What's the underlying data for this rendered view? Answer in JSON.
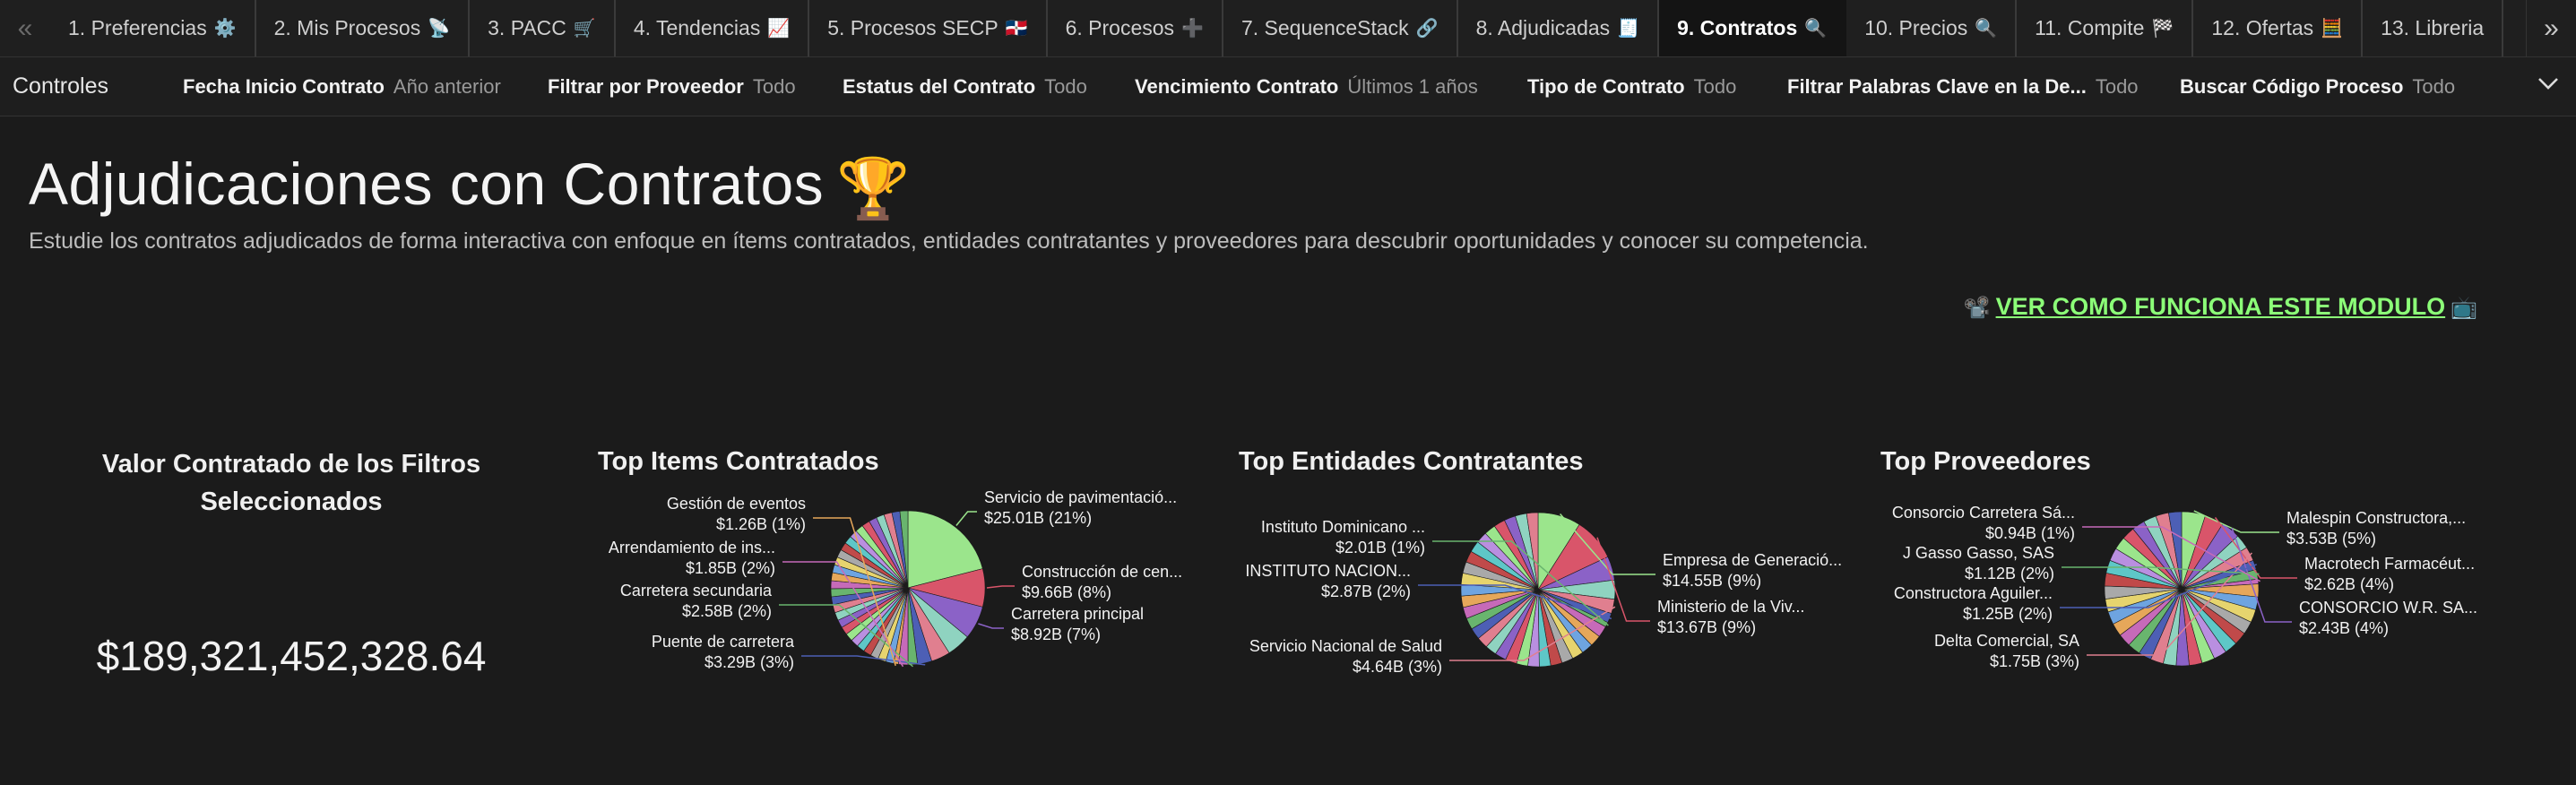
{
  "tabs": {
    "prev_label": "«",
    "next_label": "»",
    "items": [
      {
        "label": "1. Preferencias",
        "icon": "⚙️",
        "icon_name": "gear-icon",
        "active": false
      },
      {
        "label": "2. Mis Procesos",
        "icon": "📡",
        "icon_name": "satellite-icon",
        "active": false
      },
      {
        "label": "3. PACC",
        "icon": "🛒",
        "icon_name": "cart-icon",
        "active": false
      },
      {
        "label": "4. Tendencias",
        "icon": "📈",
        "icon_name": "trend-chart-icon",
        "active": false
      },
      {
        "label": "5. Procesos SECP",
        "icon": "🇩🇴",
        "icon_name": "dominican-flag-icon",
        "active": false
      },
      {
        "label": "6. Procesos",
        "icon": "➕",
        "icon_name": "plus-icon",
        "active": false
      },
      {
        "label": "7. SequenceStack",
        "icon": "🔗",
        "icon_name": "link-icon",
        "active": false
      },
      {
        "label": "8. Adjudicadas",
        "icon": "🧾",
        "icon_name": "receipt-icon",
        "active": false
      },
      {
        "label": "9. Contratos",
        "icon": "🔍",
        "icon_name": "magnifier-icon",
        "active": true
      },
      {
        "label": "10. Precios",
        "icon": "🔍",
        "icon_name": "magnifier-icon",
        "active": false
      },
      {
        "label": "11. Compite",
        "icon": "🏁",
        "icon_name": "checkered-flag-icon",
        "active": false
      },
      {
        "label": "12. Ofertas",
        "icon": "🧮",
        "icon_name": "abacus-icon",
        "active": false
      },
      {
        "label": "13. Libreria",
        "icon": "",
        "icon_name": "",
        "active": false
      }
    ]
  },
  "controls": {
    "title": "Controles",
    "filters": [
      {
        "label": "Fecha Inicio Contrato",
        "value": "Año anterior"
      },
      {
        "label": "Filtrar por Proveedor",
        "value": "Todo"
      },
      {
        "label": "Estatus del Contrato",
        "value": "Todo"
      },
      {
        "label": "Vencimiento Contrato",
        "value": "Últimos 1 años"
      },
      {
        "label": "Tipo de Contrato",
        "value": "Todo"
      },
      {
        "label": "Filtrar Palabras Clave en la De...",
        "value": "Todo"
      },
      {
        "label": "Buscar Código Proceso",
        "value": "Todo"
      }
    ],
    "chevron": "⌄"
  },
  "page": {
    "title": "Adjudicaciones con Contratos",
    "title_icon": "🏆",
    "subtitle": "Estudie los contratos adjudicados de forma interactiva con enfoque en ítems contratados, entidades contratantes y proveedores para descubrir oportunidades y conocer su competencia.",
    "howto_left_icon": "📽️",
    "howto_label": "VER COMO FUNCIONA ESTE MODULO",
    "howto_right_icon": "📺"
  },
  "kpi": {
    "title": "Valor Contratado de los Filtros Seleccionados",
    "value": "$189,321,452,328.64"
  },
  "colors": {
    "accent_link": "#8cff78",
    "background": "#1b1b1b",
    "pie_palette": [
      "#9be58c",
      "#d9556a",
      "#8b62c7",
      "#8fd3c0",
      "#e07f8f",
      "#4d5fb5",
      "#69b56e",
      "#c66ab9",
      "#e6a75a",
      "#6ea4e0",
      "#e6d46e",
      "#a9a9a9",
      "#c04a4a",
      "#5ec7c7",
      "#b98fe0"
    ]
  },
  "chart_data": [
    {
      "type": "pie",
      "title": "Top Items Contratados",
      "slices": [
        {
          "label": "Servicio de pavimentació...",
          "value_label": "$25.01B (21%)",
          "value": 25.01,
          "pct": 21
        },
        {
          "label": "Construcción de cen...",
          "value_label": "$9.66B (8%)",
          "value": 9.66,
          "pct": 8
        },
        {
          "label": "Carretera principal",
          "value_label": "$8.92B (7%)",
          "value": 8.92,
          "pct": 7
        },
        {
          "label": "",
          "value_label": "",
          "value": 6.0,
          "pct": 5
        },
        {
          "label": "",
          "value_label": "",
          "value": 4.8,
          "pct": 4
        },
        {
          "label": "Puente de carretera",
          "value_label": "$3.29B (3%)",
          "value": 3.29,
          "pct": 3
        },
        {
          "label": "Carretera secundaria",
          "value_label": "$2.58B (2%)",
          "value": 2.58,
          "pct": 2
        },
        {
          "label": "Arrendamiento de ins...",
          "value_label": "$1.85B (2%)",
          "value": 1.85,
          "pct": 2
        },
        {
          "label": "Gestión de eventos",
          "value_label": "$1.26B (1%)",
          "value": 1.26,
          "pct": 1
        }
      ]
    },
    {
      "type": "pie",
      "title": "Top Entidades Contratantes",
      "slices": [
        {
          "label": "Empresa de Generació...",
          "value_label": "$14.55B (9%)",
          "value": 14.55,
          "pct": 9
        },
        {
          "label": "Ministerio de la Viv...",
          "value_label": "$13.67B (9%)",
          "value": 13.67,
          "pct": 9
        },
        {
          "label": "",
          "value_label": "",
          "value": 8.0,
          "pct": 5
        },
        {
          "label": "",
          "value_label": "",
          "value": 6.5,
          "pct": 4
        },
        {
          "label": "Servicio Nacional de Salud",
          "value_label": "$4.64B (3%)",
          "value": 4.64,
          "pct": 3
        },
        {
          "label": "INSTITUTO NACION...",
          "value_label": "$2.87B (2%)",
          "value": 2.87,
          "pct": 2
        },
        {
          "label": "Instituto Dominicano ...",
          "value_label": "$2.01B (1%)",
          "value": 2.01,
          "pct": 1
        }
      ]
    },
    {
      "type": "pie",
      "title": "Top Proveedores",
      "slices": [
        {
          "label": "Malespin Constructora,...",
          "value_label": "$3.53B (5%)",
          "value": 3.53,
          "pct": 5
        },
        {
          "label": "Macrotech Farmacéut...",
          "value_label": "$2.62B (4%)",
          "value": 2.62,
          "pct": 4
        },
        {
          "label": "CONSORCIO W.R. SA...",
          "value_label": "$2.43B (4%)",
          "value": 2.43,
          "pct": 4
        },
        {
          "label": "",
          "value_label": "",
          "value": 2.2,
          "pct": 3
        },
        {
          "label": "Delta Comercial, SA",
          "value_label": "$1.75B (3%)",
          "value": 1.75,
          "pct": 3
        },
        {
          "label": "Constructora Aguiler...",
          "value_label": "$1.25B (2%)",
          "value": 1.25,
          "pct": 2
        },
        {
          "label": "J Gasso Gasso, SAS",
          "value_label": "$1.12B (2%)",
          "value": 1.12,
          "pct": 2
        },
        {
          "label": "Consorcio Carretera Sá...",
          "value_label": "$0.94B (1%)",
          "value": 0.94,
          "pct": 1
        }
      ]
    }
  ]
}
